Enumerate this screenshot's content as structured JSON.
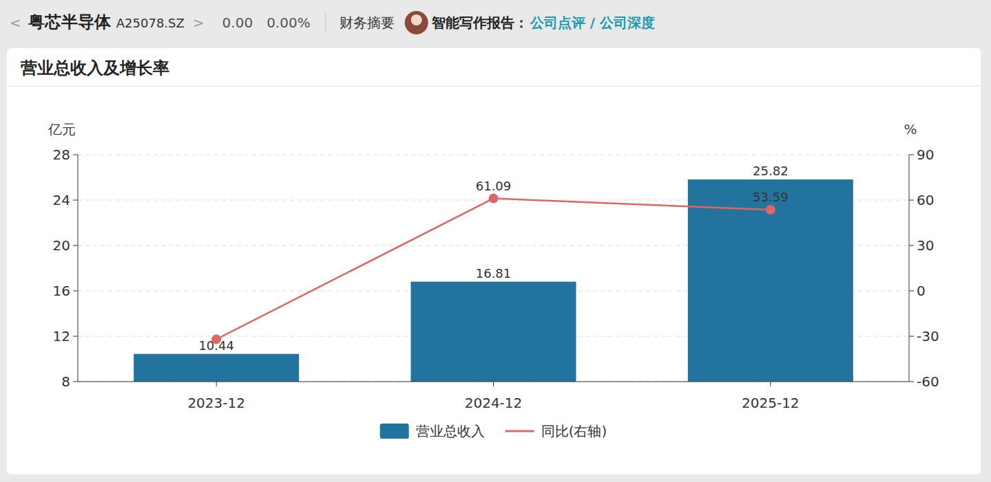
{
  "header": {
    "back": "<",
    "name": "粤芯半导体",
    "code": "A25078.SZ",
    "next": ">",
    "price": "0.00",
    "change": "0.00%",
    "tab": "财务摘要",
    "report_label": "智能写作报告：",
    "link1": "公司点评",
    "sep": "/",
    "link2": "公司深度"
  },
  "chart_data": {
    "type": "bar",
    "title": "营业总收入及增长率",
    "categories": [
      "2023-12",
      "2024-12",
      "2025-12"
    ],
    "y_label": "亿元",
    "y2_label": "%",
    "series": [
      {
        "name": "营业总收入",
        "type": "bar",
        "color": "#23739f",
        "values": [
          10.44,
          16.81,
          25.82
        ]
      },
      {
        "name": "同比(右轴)",
        "type": "line",
        "axis": "y2",
        "color": "#e06666",
        "marker": "circle",
        "values": [
          -32,
          61.09,
          53.59
        ],
        "value_labels": [
          null,
          "61.09",
          "53.59"
        ]
      }
    ],
    "ylim": [
      8,
      28
    ],
    "yticks": [
      8,
      12,
      16,
      20,
      24,
      28
    ],
    "y2lim": [
      -60,
      90
    ],
    "y2ticks": [
      -60,
      -30,
      0,
      30,
      60,
      90
    ],
    "grid": true,
    "data_labels": true,
    "legend": "bottom"
  }
}
